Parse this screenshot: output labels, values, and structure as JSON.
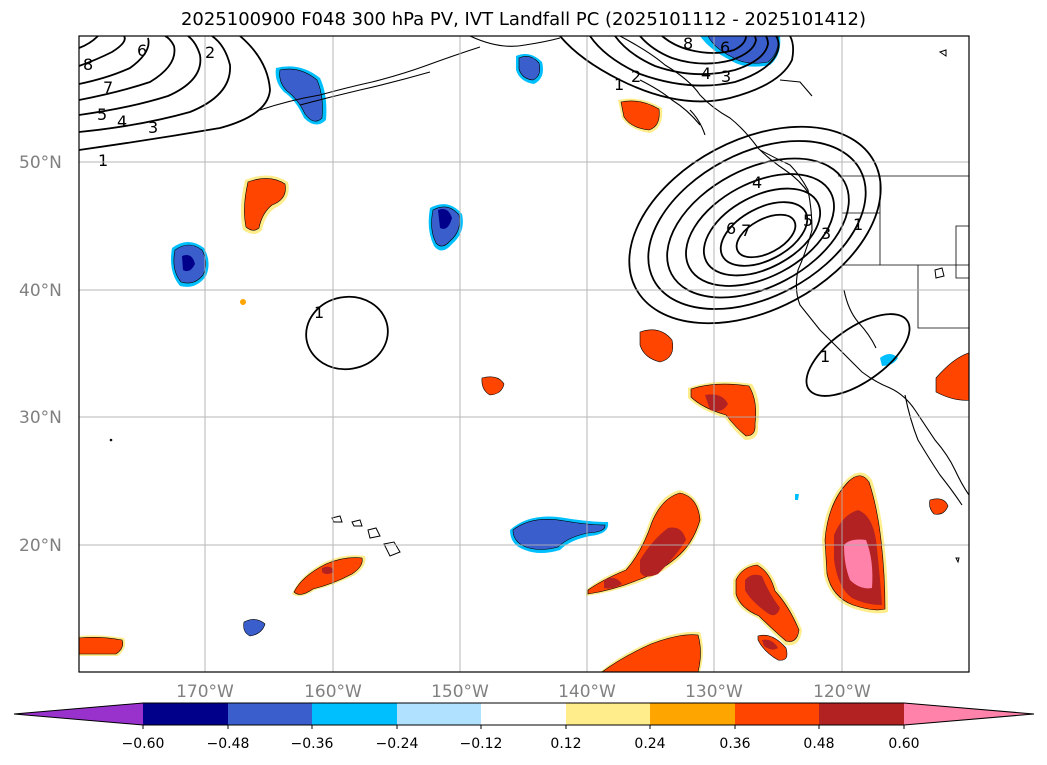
{
  "title": "2025100900 F048 300 hPa PV, IVT Landfall PC (2025101112 - 2025101412)",
  "latitude_labels": [
    "50°N",
    "40°N",
    "30°N",
    "20°N"
  ],
  "longitude_labels": [
    "170°W",
    "160°W",
    "150°W",
    "140°W",
    "130°W",
    "120°W"
  ],
  "contour_labels": {
    "nw": [
      "6",
      "2",
      "8",
      "7",
      "5",
      "4",
      "3",
      "1"
    ],
    "ne_top": [
      "8",
      "6",
      "4",
      "3",
      "1",
      "2"
    ],
    "main_low": [
      "4",
      "6",
      "7",
      "5",
      "3",
      "1"
    ],
    "center": [
      "1"
    ],
    "sw_coast": [
      "1"
    ]
  },
  "colorbar": {
    "ticks": [
      "−0.60",
      "−0.48",
      "−0.36",
      "−0.24",
      "−0.12",
      "0.12",
      "0.24",
      "0.36",
      "0.48",
      "0.60"
    ],
    "colors": {
      "under": "#9932cc",
      "neg_060": "#00008b",
      "neg_048": "#3a5fcd",
      "neg_036": "#00bfff",
      "neg_024": "#b0e2ff",
      "zero": "#ffffff",
      "pos_012": "#ffec8b",
      "pos_024": "#ffa500",
      "pos_036": "#ff4500",
      "pos_048": "#b22222",
      "over": "#ff82ab"
    }
  }
}
